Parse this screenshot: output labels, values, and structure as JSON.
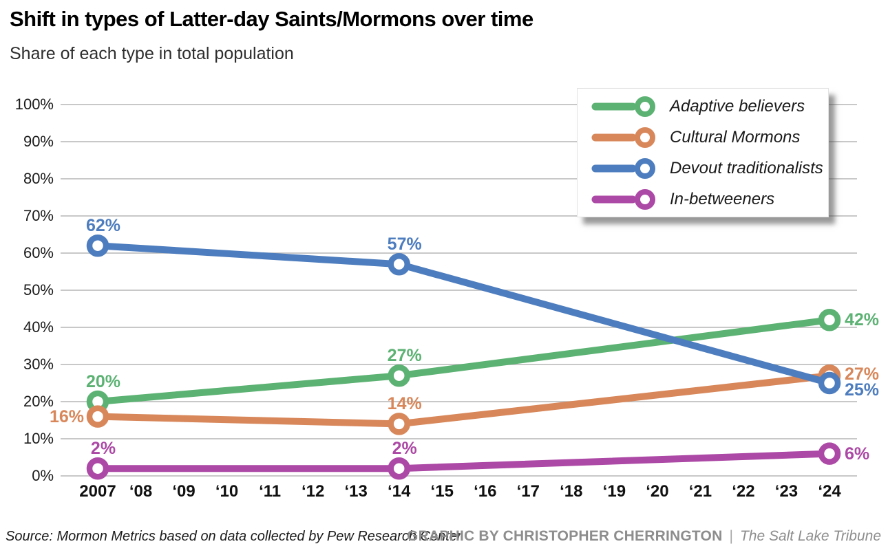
{
  "header": {
    "title": "Shift in types of Latter-day Saints/Mormons over time",
    "subtitle": "Share of each type in total population"
  },
  "footer": {
    "source": "Source: Mormon Metrics based on data collected by Pew Research Center",
    "credit": "GRAPHIC BY CHRISTOPHER CHERRINGTON",
    "separator": "|",
    "publication": "The Salt Lake Tribune"
  },
  "colors": {
    "grid": "#b5b5b5",
    "axis_text": "#1a1a1a",
    "x_axis_text": "#111111",
    "green": "#5cb273",
    "orange": "#d8875a",
    "blue": "#4d7dbe",
    "purple": "#ac48a5"
  },
  "chart_data": {
    "type": "line",
    "title": "Shift in types of Latter-day Saints/Mormons over time",
    "subtitle": "Share of each type in total population",
    "xlabel": "",
    "ylabel": "",
    "ylim": [
      0,
      100
    ],
    "grid": true,
    "legend_position": "top-right",
    "y_ticks": [
      {
        "value": 100,
        "label": "100%"
      },
      {
        "value": 90,
        "label": "90%"
      },
      {
        "value": 80,
        "label": "80%"
      },
      {
        "value": 70,
        "label": "70%"
      },
      {
        "value": 60,
        "label": "60%"
      },
      {
        "value": 50,
        "label": "50%"
      },
      {
        "value": 40,
        "label": "40%"
      },
      {
        "value": 30,
        "label": "30%"
      },
      {
        "value": 20,
        "label": "20%"
      },
      {
        "value": 10,
        "label": "10%"
      },
      {
        "value": 0,
        "label": "0%"
      }
    ],
    "x_ticks": [
      {
        "year": 2007,
        "label": "2007"
      },
      {
        "year": 2008,
        "label": "‘08"
      },
      {
        "year": 2009,
        "label": "‘09"
      },
      {
        "year": 2010,
        "label": "‘10"
      },
      {
        "year": 2011,
        "label": "‘11"
      },
      {
        "year": 2012,
        "label": "‘12"
      },
      {
        "year": 2013,
        "label": "‘13"
      },
      {
        "year": 2014,
        "label": "‘14"
      },
      {
        "year": 2015,
        "label": "‘15"
      },
      {
        "year": 2016,
        "label": "‘16"
      },
      {
        "year": 2017,
        "label": "‘17"
      },
      {
        "year": 2018,
        "label": "‘18"
      },
      {
        "year": 2019,
        "label": "‘19"
      },
      {
        "year": 2020,
        "label": "‘20"
      },
      {
        "year": 2021,
        "label": "‘21"
      },
      {
        "year": 2022,
        "label": "‘22"
      },
      {
        "year": 2023,
        "label": "‘23"
      },
      {
        "year": 2024,
        "label": "‘24"
      }
    ],
    "series": [
      {
        "name": "Adaptive believers",
        "color": "#5cb273",
        "points": [
          {
            "x": 2007,
            "y": 20,
            "label": "20%",
            "label_pos": "above",
            "label_dy": 0
          },
          {
            "x": 2014,
            "y": 27,
            "label": "27%",
            "label_pos": "above",
            "label_dy": 0
          },
          {
            "x": 2024,
            "y": 42,
            "label": "42%",
            "label_pos": "right",
            "label_dy": 0
          }
        ]
      },
      {
        "name": "Cultural Mormons",
        "color": "#d8875a",
        "points": [
          {
            "x": 2007,
            "y": 16,
            "label": "16%",
            "label_pos": "left",
            "label_dy": 0
          },
          {
            "x": 2014,
            "y": 14,
            "label": "14%",
            "label_pos": "above",
            "label_dy": 0
          },
          {
            "x": 2024,
            "y": 27,
            "label": "27%",
            "label_pos": "right",
            "label_dy": -2
          }
        ]
      },
      {
        "name": "Devout traditionalists",
        "color": "#4d7dbe",
        "points": [
          {
            "x": 2007,
            "y": 62,
            "label": "62%",
            "label_pos": "above",
            "label_dy": 0
          },
          {
            "x": 2014,
            "y": 57,
            "label": "57%",
            "label_pos": "above",
            "label_dy": 0
          },
          {
            "x": 2024,
            "y": 25,
            "label": "25%",
            "label_pos": "right",
            "label_dy": 10
          }
        ]
      },
      {
        "name": "In-betweeners",
        "color": "#ac48a5",
        "points": [
          {
            "x": 2007,
            "y": 2,
            "label": "2%",
            "label_pos": "above",
            "label_dy": 0
          },
          {
            "x": 2014,
            "y": 2,
            "label": "2%",
            "label_pos": "above",
            "label_dy": 0
          },
          {
            "x": 2024,
            "y": 6,
            "label": "6%",
            "label_pos": "right",
            "label_dy": 0
          }
        ]
      }
    ]
  }
}
